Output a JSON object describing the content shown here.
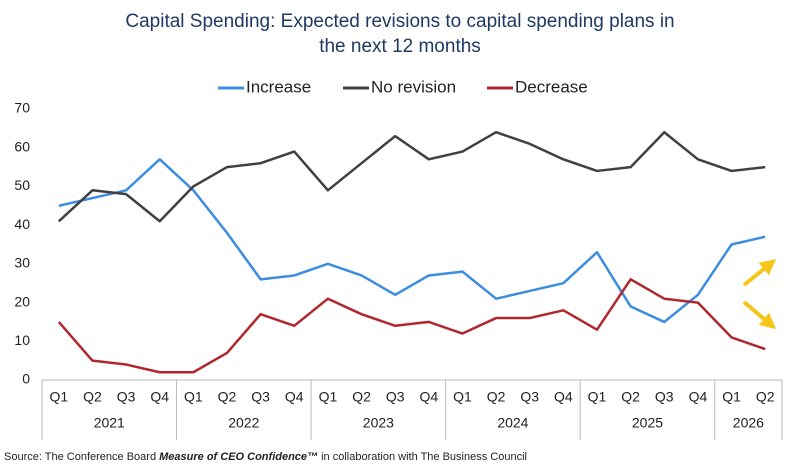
{
  "chart_data": {
    "type": "line",
    "title": [
      "Capital Spending: Expected revisions to capital spending plans in",
      "the next 12 months"
    ],
    "category_groups": [
      {
        "label": "2021",
        "quarters": [
          "Q1",
          "Q2",
          "Q3",
          "Q4"
        ]
      },
      {
        "label": "2022",
        "quarters": [
          "Q1",
          "Q2",
          "Q3",
          "Q4"
        ]
      },
      {
        "label": "2023",
        "quarters": [
          "Q1",
          "Q2",
          "Q3",
          "Q4"
        ]
      },
      {
        "label": "2024",
        "quarters": [
          "Q1",
          "Q2",
          "Q3",
          "Q4"
        ]
      },
      {
        "label": "2025",
        "quarters": [
          "Q1",
          "Q2",
          "Q3",
          "Q4"
        ]
      },
      {
        "label": "2026",
        "quarters": [
          "Q1",
          "Q2"
        ]
      }
    ],
    "series": [
      {
        "name": "Increase",
        "color": "#3b8de0",
        "values": [
          45,
          47,
          49,
          57,
          49,
          38,
          26,
          27,
          30,
          27,
          22,
          27,
          28,
          21,
          23,
          25,
          33,
          19,
          15,
          22,
          35,
          37
        ]
      },
      {
        "name": "No revision",
        "color": "#404040",
        "values": [
          41,
          49,
          48,
          41,
          50,
          55,
          56,
          59,
          49,
          56,
          63,
          57,
          59,
          64,
          61,
          57,
          54,
          55,
          64,
          57,
          54,
          55
        ]
      },
      {
        "name": "Decrease",
        "color": "#b0282e",
        "values": [
          15,
          5,
          4,
          2,
          2,
          7,
          17,
          14,
          21,
          17,
          14,
          15,
          12,
          16,
          16,
          18,
          13,
          26,
          21,
          20,
          11,
          8
        ]
      }
    ],
    "ylim": [
      0,
      70
    ],
    "yticks": [
      0,
      10,
      20,
      30,
      40,
      50,
      60,
      70
    ],
    "grid": false,
    "legend": "top",
    "source": [
      "Source: The Conference Board ",
      "Measure of CEO Confidence™",
      " in collaboration with The Business Council"
    ]
  }
}
